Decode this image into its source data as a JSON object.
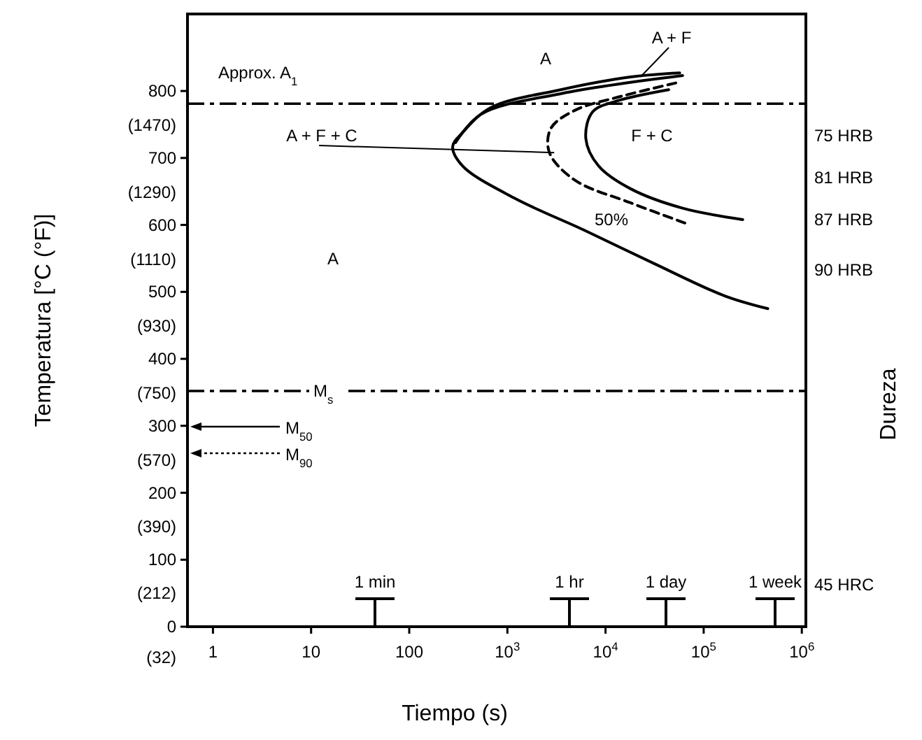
{
  "chart_data": {
    "type": "line",
    "xlabel": "Tiempo (s)",
    "ylabel": "Temperatura [°C (°F)]",
    "y2label": "Dureza",
    "log": "x",
    "grid": false,
    "marker": "none",
    "xlim": [
      0.55,
      1100000
    ],
    "ylim": [
      0,
      915
    ],
    "xticks": [
      1,
      10,
      100,
      {
        "value": 1000,
        "label": "10$^{3}$"
      },
      {
        "value": 10000,
        "label": "10$^{4}$"
      },
      {
        "value": 100000,
        "label": "10$^{5}$"
      },
      {
        "value": 1000000,
        "label": "10$^{6}$"
      }
    ],
    "yticks": [
      0,
      100,
      200,
      300,
      400,
      500,
      600,
      700,
      800
    ],
    "y3lim": [
      122,
      1769
    ],
    "y3ticks": [
      {
        "value": 212,
        "label": "(212)"
      },
      {
        "value": 390,
        "label": "(390)"
      },
      {
        "value": 570,
        "label": "(570)"
      },
      {
        "value": 750,
        "label": "(750)"
      },
      {
        "value": 930,
        "label": "(930)"
      },
      {
        "value": 1110,
        "label": "(1110)"
      },
      {
        "value": 1290,
        "label": "(1290)"
      },
      {
        "value": 1470,
        "label": "(1470)"
      }
    ],
    "series": [
      {
        "color": "#000000",
        "line_style": "solid",
        "x": [
          57000,
          18000,
          3500,
          675,
          350,
          277,
          350,
          1180,
          6100,
          31600,
          164000,
          450000
        ],
        "values": [
          827,
          821,
          802,
          775,
          738,
          717,
          688,
          640,
          592,
          542,
          494,
          475
        ]
      },
      {
        "color": "#000000",
        "line_style": "solid",
        "x": [
          61000,
          3500,
          535,
          296
        ],
        "values": [
          823,
          796,
          765,
          723
        ]
      },
      {
        "color": "#000000",
        "line_style": "dashed",
        "x": [
          52000,
          14400,
          4850,
          2770,
          2680,
          4850,
          18000,
          67000
        ],
        "values": [
          812,
          792,
          771,
          744,
          708,
          667,
          633,
          602
        ]
      },
      {
        "color": "#000000",
        "line_style": "solid",
        "x": [
          44000,
          13000,
          7400,
          6300,
          8500,
          18000,
          61000,
          250000
        ],
        "values": [
          802,
          785,
          769,
          729,
          688,
          654,
          625,
          608
        ]
      }
    ],
    "ref_lines": [
      {
        "axis": "y",
        "value": 781,
        "label": "Approx. A$_{1}$",
        "line_style": "dashed",
        "color": "#000000"
      },
      {
        "axis": "y",
        "value": 352,
        "label": "M$_{s}$",
        "line_style": "dashed",
        "color": "#000000"
      }
    ],
    "annotations": [
      "A",
      {
        "text": "A + F",
        "x": 22700,
        "y": 821
      },
      {
        "text": "A + F + C",
        "x": 3000,
        "y": 708
      },
      "F + C",
      "50%",
      "A",
      "M$_{50}$",
      "M$_{90}$",
      "1 min",
      "1 hr",
      "1 day",
      "1 week",
      "(32)",
      "75 HRB",
      "81 HRB",
      "87 HRB",
      "90 HRB",
      "45 HRC"
    ]
  }
}
